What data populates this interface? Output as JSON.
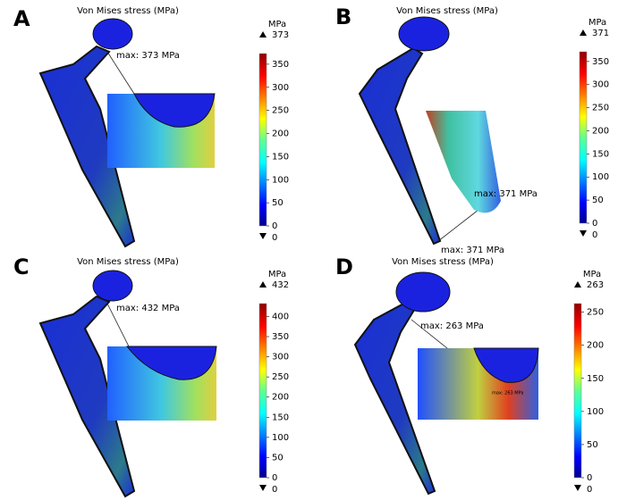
{
  "panels": [
    {
      "label": "A",
      "title": "Von Mises stress (MPa)",
      "unit": "MPa",
      "max": 373,
      "min": 0,
      "ticks": [
        0,
        50,
        100,
        150,
        200,
        250,
        300,
        350
      ],
      "annotations": [
        "max: 373 MPa"
      ]
    },
    {
      "label": "B",
      "title": "Von Mises stress (MPa)",
      "unit": "MPa",
      "max": 371,
      "min": 0,
      "ticks": [
        0,
        50,
        100,
        150,
        200,
        250,
        300,
        350
      ],
      "annotations": [
        "max: 371 MPa",
        "max: 371 MPa"
      ]
    },
    {
      "label": "C",
      "title": "Von Mises stress (MPa)",
      "unit": "MPa",
      "max": 432,
      "min": 0,
      "ticks": [
        0,
        50,
        100,
        150,
        200,
        250,
        300,
        350,
        400
      ],
      "annotations": [
        "max: 432 MPa"
      ]
    },
    {
      "label": "D",
      "title": "Von Mises stress (MPa)",
      "unit": "MPa",
      "max": 263,
      "min": 0,
      "ticks": [
        0,
        50,
        100,
        150,
        200,
        250
      ],
      "annotations": [
        "max: 263 MPa",
        "max: 263 MPa"
      ]
    }
  ]
}
